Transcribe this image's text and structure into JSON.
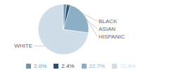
{
  "chart_data": {
    "type": "pie",
    "categories": [
      "WHITE",
      "HISPANIC",
      "ASIAN",
      "BLACK"
    ],
    "values": [
      72.9,
      22.7,
      2.4,
      2.0
    ],
    "value_labels": [
      "72.9%",
      "22.7%",
      "2.4%",
      "2.0%"
    ],
    "colors": [
      "#cfdde8",
      "#8aafc6",
      "#2d4f72",
      "#7096ad"
    ],
    "legend": "bottom"
  }
}
